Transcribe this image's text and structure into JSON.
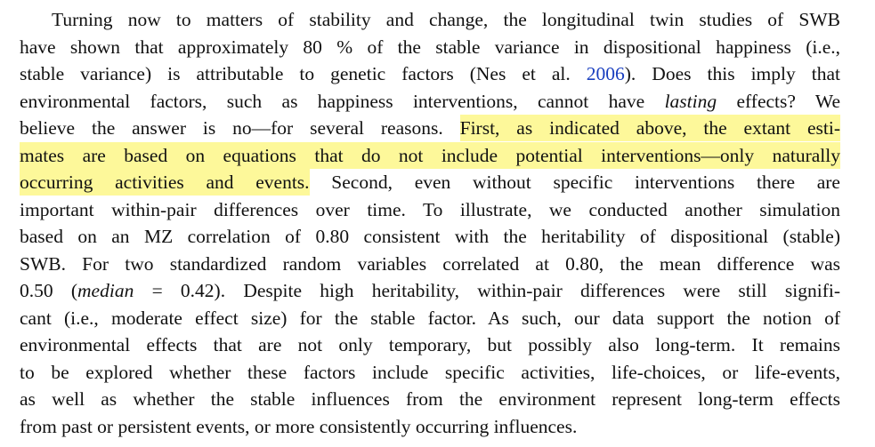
{
  "paragraph": {
    "lines": [
      {
        "spans": [
          {
            "text": "Turning now to matters of stability and change, the longitudinal twin studies of SWB"
          }
        ]
      },
      {
        "spans": [
          {
            "text": "have shown that approximately 80 % of the stable variance in dispositional happiness (i.e.,"
          }
        ]
      },
      {
        "spans": [
          {
            "text": "stable variance) is attributable to genetic factors (Nes et al. "
          },
          {
            "text": "2006",
            "link": true
          },
          {
            "text": "). Does this imply that"
          }
        ]
      },
      {
        "spans": [
          {
            "text": "environmental factors, such as happiness interventions, cannot have "
          },
          {
            "text": "lasting",
            "italic": true
          },
          {
            "text": " effects? We"
          }
        ]
      },
      {
        "spans": [
          {
            "text": "believe the answer is no—for several reasons. "
          },
          {
            "text": "First, as indicated above, the extant esti-",
            "highlight": true
          }
        ]
      },
      {
        "spans": [
          {
            "text": "mates are based on equations that do not include potential interventions—only naturally",
            "highlight": true
          }
        ]
      },
      {
        "spans": [
          {
            "text": "occurring activities and events.",
            "highlight": true
          },
          {
            "text": " Second, even without specific interventions there are"
          }
        ]
      },
      {
        "spans": [
          {
            "text": "important within-pair differences over time. To illustrate, we conducted another simulation"
          }
        ]
      },
      {
        "spans": [
          {
            "text": "based on an MZ correlation of 0.80 consistent with the heritability of dispositional (stable)"
          }
        ]
      },
      {
        "spans": [
          {
            "text": "SWB. For two standardized random variables correlated at 0.80, the mean difference was"
          }
        ]
      },
      {
        "spans": [
          {
            "text": "0.50 ("
          },
          {
            "text": "median",
            "italic": true
          },
          {
            "text": " = 0.42). Despite high heritability, within-pair differences were still signifi-"
          }
        ]
      },
      {
        "spans": [
          {
            "text": "cant (i.e., moderate effect size) for the stable factor. As such, our data support the notion of"
          }
        ]
      },
      {
        "spans": [
          {
            "text": "environmental effects that are not only temporary, but possibly also long-term. It remains"
          }
        ]
      },
      {
        "spans": [
          {
            "text": "to be explored whether these factors include specific activities, life-choices, or life-events,"
          }
        ]
      },
      {
        "spans": [
          {
            "text": "as well as whether the stable influences from the environment represent long-term effects"
          }
        ]
      },
      {
        "spans": [
          {
            "text": "from past or persistent events, or more consistently occurring influences."
          }
        ]
      }
    ]
  }
}
